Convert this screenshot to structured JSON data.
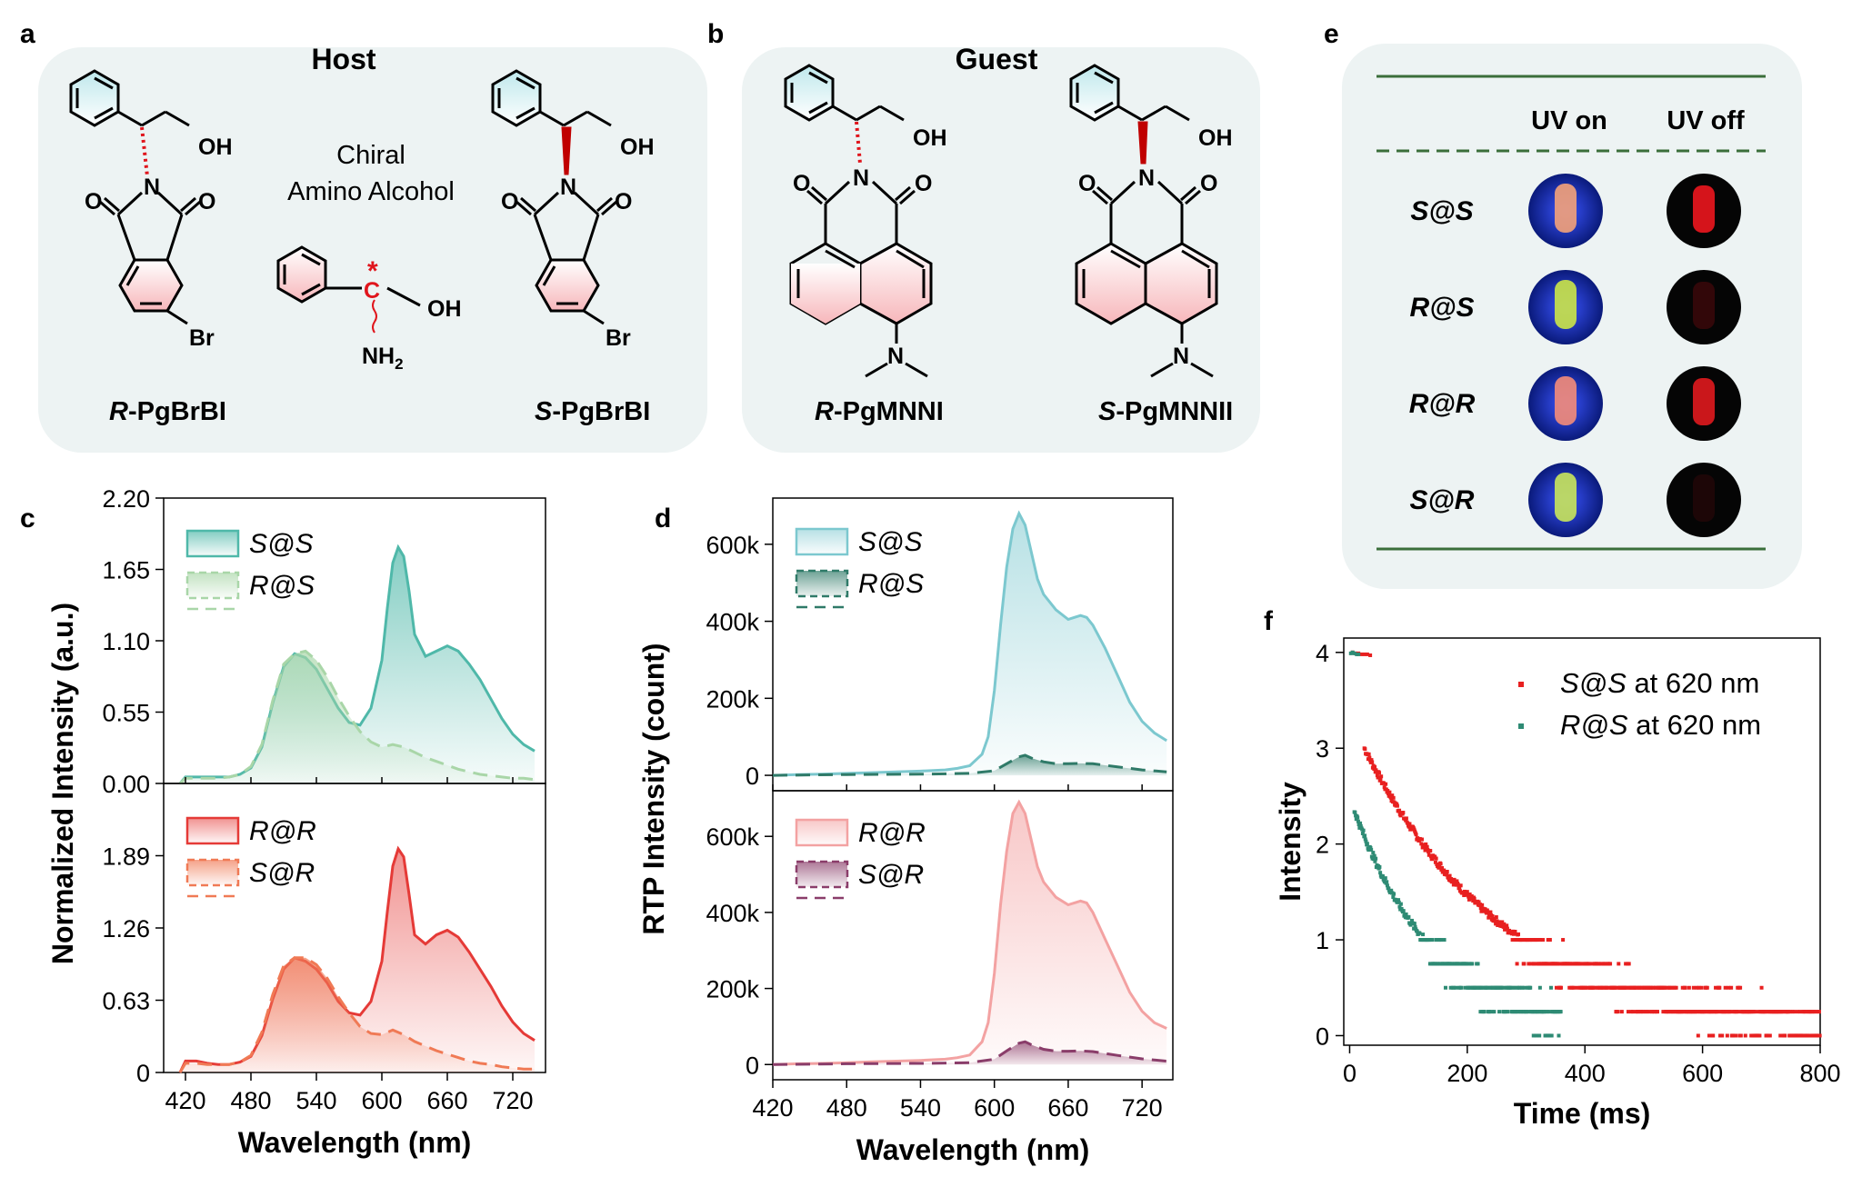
{
  "panel_letters": {
    "a": "a",
    "b": "b",
    "c": "c",
    "d": "d",
    "e": "e",
    "f": "f"
  },
  "panel_a": {
    "title": "Host",
    "center_label_line1": "Chiral",
    "center_label_line2": "Amino Alcohol",
    "left_prefix": "R",
    "left_name": "-PgBrBI",
    "right_prefix": "S",
    "right_name": "-PgBrBI",
    "atom_oh": "OH",
    "atom_o": "O",
    "atom_n": "N",
    "atom_br": "Br",
    "atom_c": "C",
    "atom_nh2": "NH",
    "atom_nh2_sub": "2",
    "star": "*"
  },
  "panel_b": {
    "title": "Guest",
    "left_prefix": "R",
    "left_name": "-PgMNNI",
    "right_prefix": "S",
    "right_name": "-PgMNNII"
  },
  "panel_e": {
    "col_uv_on": "UV on",
    "col_uv_off": "UV off",
    "rows": [
      {
        "label": "S@S",
        "on_color": "#f0a07a",
        "off_color": "#e0151c",
        "off_intensity": 0.95
      },
      {
        "label": "R@S",
        "on_color": "#c8e24a",
        "off_color": "#6a0c10",
        "off_intensity": 0.45
      },
      {
        "label": "R@R",
        "on_color": "#f08a7a",
        "off_color": "#e01a1e",
        "off_intensity": 0.9
      },
      {
        "label": "S@R",
        "on_color": "#c6e25c",
        "off_color": "#4a080c",
        "off_intensity": 0.35
      }
    ]
  },
  "colors": {
    "teal": "#4fb8a9",
    "teal_dark": "#2f7a68",
    "green_pale": "#a9d6a8",
    "red": "#e53a37",
    "orange": "#f07a55",
    "pink": "#f3a2a2",
    "plum": "#8a3d6a",
    "panel_bg": "#edf3f3",
    "darkgreen": "#3a6e3a",
    "decay_red": "#e82020",
    "decay_teal": "#2e8b74"
  },
  "chart_data": [
    {
      "id": "c_top",
      "type": "area",
      "xlabel": "Wavelength (nm)",
      "ylabel": "Normalized Intensity (a.u.)",
      "xlim": [
        400,
        750
      ],
      "ylim": [
        0,
        2.2
      ],
      "yticks": [
        0.0,
        0.55,
        1.1,
        1.65,
        2.2
      ],
      "ytick_labels": [
        "0.00",
        "0.55",
        "1.10",
        "1.65",
        "2.20"
      ],
      "series": [
        {
          "name": "S@S",
          "style": "solid",
          "x": [
            415,
            420,
            430,
            440,
            450,
            460,
            470,
            480,
            490,
            500,
            510,
            520,
            530,
            540,
            550,
            560,
            570,
            580,
            590,
            600,
            605,
            610,
            615,
            620,
            625,
            630,
            640,
            650,
            660,
            670,
            680,
            690,
            700,
            710,
            720,
            730,
            740
          ],
          "y": [
            0.0,
            0.05,
            0.05,
            0.05,
            0.05,
            0.05,
            0.07,
            0.12,
            0.28,
            0.62,
            0.9,
            1.0,
            0.97,
            0.88,
            0.73,
            0.58,
            0.47,
            0.45,
            0.58,
            0.95,
            1.35,
            1.7,
            1.82,
            1.75,
            1.48,
            1.15,
            0.98,
            1.02,
            1.06,
            1.02,
            0.92,
            0.8,
            0.65,
            0.5,
            0.38,
            0.3,
            0.25
          ]
        },
        {
          "name": "R@S",
          "style": "dashed",
          "x": [
            415,
            420,
            430,
            440,
            450,
            460,
            470,
            480,
            490,
            500,
            510,
            520,
            530,
            540,
            550,
            560,
            570,
            580,
            590,
            600,
            610,
            620,
            630,
            640,
            650,
            660,
            670,
            680,
            690,
            700,
            710,
            720,
            730,
            740
          ],
          "y": [
            0.0,
            0.04,
            0.04,
            0.04,
            0.04,
            0.05,
            0.07,
            0.13,
            0.3,
            0.64,
            0.92,
            1.0,
            1.02,
            0.95,
            0.82,
            0.66,
            0.52,
            0.4,
            0.32,
            0.28,
            0.3,
            0.28,
            0.24,
            0.2,
            0.17,
            0.14,
            0.11,
            0.09,
            0.07,
            0.06,
            0.05,
            0.04,
            0.04,
            0.03
          ]
        }
      ]
    },
    {
      "id": "c_bot",
      "type": "area",
      "xlabel": "Wavelength (nm)",
      "ylabel": "Normalized Intensity (a.u.)",
      "xlim": [
        400,
        750
      ],
      "ylim": [
        0,
        2.52
      ],
      "yticks": [
        0,
        0.63,
        1.26,
        1.89
      ],
      "ytick_labels": [
        "0",
        "0.63",
        "1.26",
        "1.89"
      ],
      "xticks": [
        420,
        480,
        540,
        600,
        660,
        720
      ],
      "series": [
        {
          "name": "R@R",
          "style": "solid",
          "x": [
            415,
            420,
            430,
            440,
            450,
            460,
            470,
            480,
            490,
            500,
            510,
            520,
            530,
            540,
            550,
            560,
            570,
            580,
            590,
            600,
            605,
            610,
            615,
            620,
            625,
            630,
            640,
            650,
            660,
            670,
            680,
            690,
            700,
            710,
            720,
            730,
            740
          ],
          "y": [
            0.0,
            0.1,
            0.1,
            0.08,
            0.07,
            0.07,
            0.09,
            0.14,
            0.32,
            0.64,
            0.9,
            1.0,
            0.97,
            0.9,
            0.78,
            0.62,
            0.52,
            0.5,
            0.62,
            0.97,
            1.4,
            1.8,
            1.95,
            1.88,
            1.55,
            1.2,
            1.12,
            1.2,
            1.24,
            1.18,
            1.05,
            0.9,
            0.75,
            0.58,
            0.44,
            0.34,
            0.28
          ]
        },
        {
          "name": "S@R",
          "style": "dashed",
          "x": [
            415,
            420,
            430,
            440,
            450,
            460,
            470,
            480,
            490,
            500,
            510,
            520,
            530,
            540,
            550,
            560,
            570,
            580,
            590,
            600,
            610,
            620,
            630,
            640,
            650,
            660,
            670,
            680,
            690,
            700,
            710,
            720,
            730,
            740
          ],
          "y": [
            0.0,
            0.08,
            0.08,
            0.07,
            0.07,
            0.07,
            0.09,
            0.15,
            0.35,
            0.68,
            0.93,
            1.0,
            1.0,
            0.94,
            0.82,
            0.66,
            0.52,
            0.4,
            0.34,
            0.33,
            0.37,
            0.33,
            0.27,
            0.23,
            0.19,
            0.16,
            0.13,
            0.1,
            0.08,
            0.07,
            0.05,
            0.04,
            0.03,
            0.03
          ]
        }
      ]
    },
    {
      "id": "d_top",
      "type": "area",
      "xlabel": "Wavelength (nm)",
      "ylabel": "RTP Intensity (count)",
      "xlim": [
        420,
        745
      ],
      "ylim": [
        -40000,
        720000
      ],
      "yticks": [
        0,
        200000,
        400000,
        600000
      ],
      "ytick_labels": [
        "0",
        "200k",
        "400k",
        "600k"
      ],
      "series": [
        {
          "name": "S@S",
          "style": "solid",
          "x": [
            420,
            440,
            460,
            480,
            500,
            520,
            540,
            560,
            570,
            580,
            590,
            595,
            600,
            605,
            610,
            615,
            620,
            625,
            630,
            635,
            640,
            650,
            660,
            665,
            670,
            675,
            680,
            690,
            700,
            710,
            720,
            730,
            740
          ],
          "y": [
            0,
            2000,
            3000,
            5000,
            7000,
            9000,
            11000,
            14000,
            18000,
            25000,
            55000,
            100000,
            220000,
            390000,
            540000,
            640000,
            680000,
            650000,
            580000,
            510000,
            470000,
            430000,
            405000,
            410000,
            415000,
            410000,
            390000,
            330000,
            260000,
            190000,
            140000,
            110000,
            90000
          ]
        },
        {
          "name": "R@S",
          "style": "dashed",
          "x": [
            420,
            480,
            540,
            580,
            600,
            610,
            620,
            625,
            630,
            640,
            650,
            660,
            670,
            680,
            700,
            720,
            740
          ],
          "y": [
            0,
            2000,
            3000,
            5000,
            12000,
            30000,
            48000,
            52000,
            45000,
            35000,
            30000,
            30000,
            31000,
            30000,
            22000,
            14000,
            9000
          ]
        }
      ]
    },
    {
      "id": "d_bot",
      "type": "area",
      "xlabel": "Wavelength (nm)",
      "ylabel": "RTP Intensity (count)",
      "xlim": [
        420,
        745
      ],
      "ylim": [
        -40000,
        720000
      ],
      "yticks": [
        0,
        200000,
        400000,
        600000
      ],
      "ytick_labels": [
        "0",
        "200k",
        "400k",
        "600k"
      ],
      "xticks": [
        420,
        480,
        540,
        600,
        660,
        720
      ],
      "series": [
        {
          "name": "R@R",
          "style": "solid",
          "x": [
            420,
            440,
            460,
            480,
            500,
            520,
            540,
            560,
            570,
            580,
            590,
            595,
            600,
            605,
            610,
            615,
            620,
            625,
            630,
            635,
            640,
            650,
            660,
            665,
            670,
            675,
            680,
            690,
            700,
            710,
            720,
            730,
            740
          ],
          "y": [
            0,
            2000,
            3000,
            5000,
            7000,
            9000,
            11000,
            14000,
            18000,
            25000,
            60000,
            110000,
            240000,
            420000,
            560000,
            660000,
            690000,
            660000,
            590000,
            520000,
            480000,
            440000,
            420000,
            425000,
            430000,
            425000,
            400000,
            330000,
            260000,
            190000,
            140000,
            110000,
            95000
          ]
        },
        {
          "name": "S@R",
          "style": "dashed",
          "x": [
            420,
            480,
            540,
            580,
            600,
            610,
            620,
            625,
            630,
            640,
            650,
            660,
            670,
            680,
            700,
            720,
            740
          ],
          "y": [
            0,
            2000,
            3000,
            5000,
            14000,
            36000,
            56000,
            60000,
            52000,
            40000,
            35000,
            35000,
            36000,
            34000,
            24000,
            15000,
            9000
          ]
        }
      ]
    },
    {
      "id": "f",
      "type": "scatter",
      "xlabel": "Time (ms)",
      "ylabel": "Intensity",
      "xlim": [
        -10,
        800
      ],
      "ylim": [
        -0.1,
        4.15
      ],
      "xticks": [
        0,
        200,
        400,
        600,
        800
      ],
      "yticks": [
        0,
        1,
        2,
        3,
        4
      ],
      "series": [
        {
          "name": "S@S at 620 nm",
          "label_italic": "S@S",
          "label_rest": " at 620 nm",
          "color": "#e82020",
          "tau": 245,
          "y0": 3.0,
          "start": 25,
          "end": 800,
          "head": [
            [
              5,
              4.0
            ],
            [
              10,
              3.99
            ],
            [
              15,
              3.99
            ],
            [
              20,
              3.98
            ],
            [
              25,
              3.98
            ],
            [
              30,
              3.98
            ],
            [
              35,
              3.97
            ]
          ]
        },
        {
          "name": "R@S at 620 nm",
          "label_italic": "R@S",
          "label_rest": " at 620 nm",
          "color": "#2e8b74",
          "tau": 140,
          "y0": 2.35,
          "start": 8,
          "end": 360,
          "head": [
            [
              2,
              3.99
            ],
            [
              5,
              4.0
            ],
            [
              8,
              3.99
            ],
            [
              12,
              3.98
            ],
            [
              15,
              3.98
            ]
          ]
        }
      ]
    }
  ]
}
